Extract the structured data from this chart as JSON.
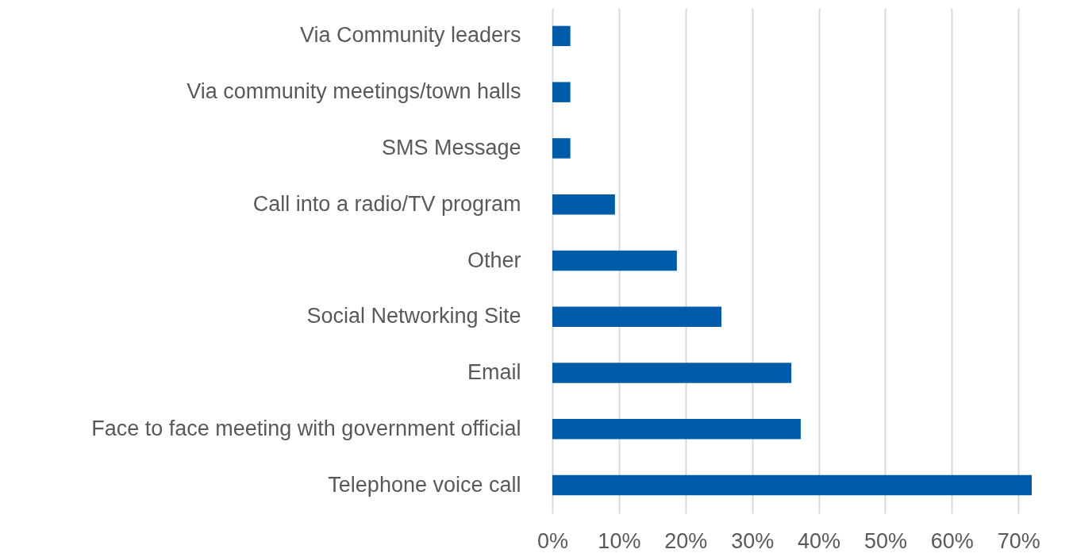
{
  "chart_data": {
    "type": "bar",
    "orientation": "horizontal",
    "categories": [
      "Via Community leaders",
      "Via community meetings/town halls",
      "SMS Message",
      "Call into a radio/TV program",
      "Other",
      "Social Networking Site",
      "Email",
      "Face to face meeting with government official",
      "Telephone voice call"
    ],
    "values": [
      2.7,
      2.7,
      2.7,
      9.4,
      18.7,
      25.4,
      35.9,
      37.3,
      72.0
    ],
    "color": "#005ca9",
    "xlim": [
      0,
      72
    ],
    "xticks": [
      {
        "value": 0,
        "label": "0%"
      },
      {
        "value": 10,
        "label": "10%"
      },
      {
        "value": 20,
        "label": "20%"
      },
      {
        "value": 30,
        "label": "30%"
      },
      {
        "value": 40,
        "label": "40%"
      },
      {
        "value": 50,
        "label": "50%"
      },
      {
        "value": 60,
        "label": "60%"
      },
      {
        "value": 70,
        "label": "70%"
      }
    ],
    "grid": "x"
  }
}
